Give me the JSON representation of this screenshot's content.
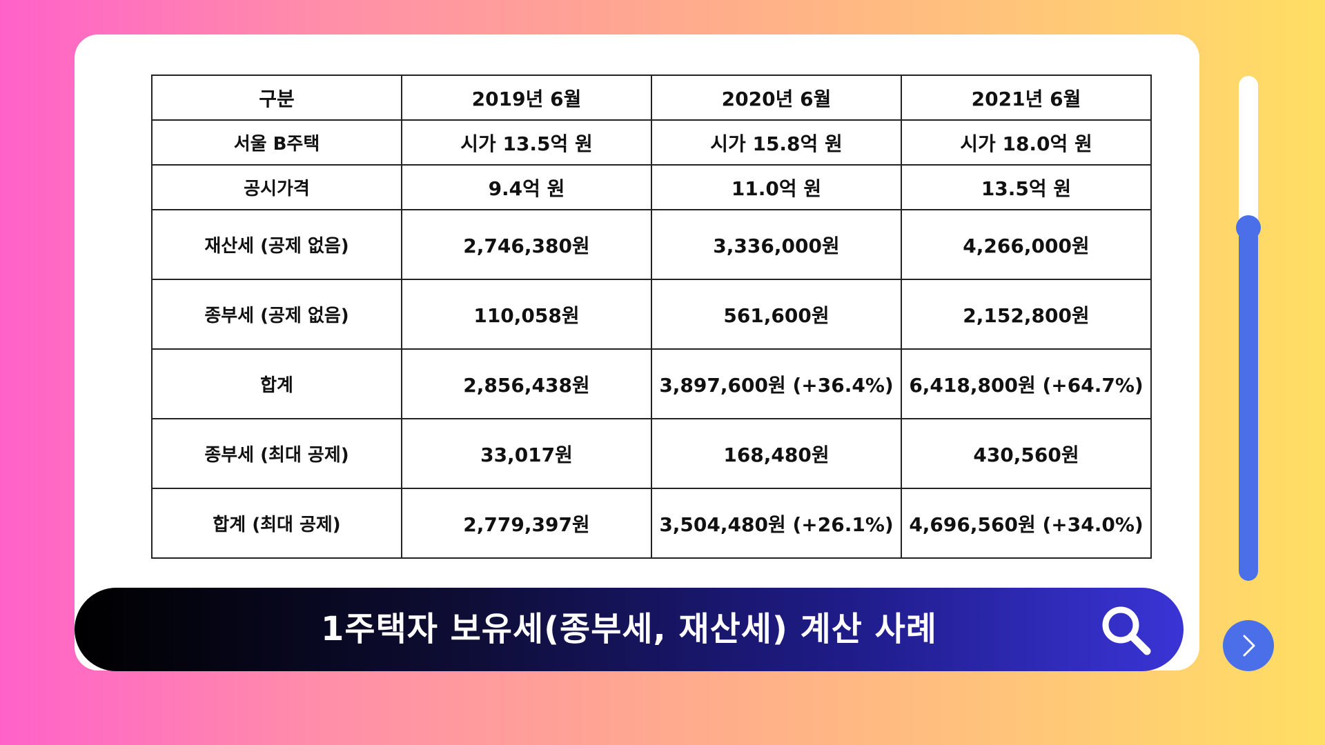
{
  "table": {
    "headers": [
      "구분",
      "2019년 6월",
      "2020년 6월",
      "2021년 6월"
    ],
    "rows": [
      {
        "label": "서울 B주택",
        "values": [
          "시가 13.5억 원",
          "시가 15.8억 원",
          "시가 18.0억 원"
        ]
      },
      {
        "label": "공시가격",
        "values": [
          "9.4억 원",
          "11.0억 원",
          "13.5억 원"
        ]
      },
      {
        "label": "재산세 (공제 없음)",
        "values": [
          "2,746,380원",
          "3,336,000원",
          "4,266,000원"
        ]
      },
      {
        "label": "종부세 (공제 없음)",
        "values": [
          "110,058원",
          "561,600원",
          "2,152,800원"
        ]
      },
      {
        "label": "합계",
        "values": [
          "2,856,438원",
          "3,897,600원 (+36.4%)",
          "6,418,800원 (+64.7%)"
        ]
      },
      {
        "label": "종부세 (최대 공제)",
        "values": [
          "33,017원",
          "168,480원",
          "430,560원"
        ]
      },
      {
        "label": "합계 (최대 공제)",
        "values": [
          "2,779,397원",
          "3,504,480원 (+26.1%)",
          "4,696,560원 (+34.0%)"
        ]
      }
    ]
  },
  "title_bar": {
    "title": "1주택자 보유세(종부세, 재산세) 계산 사례",
    "icon": "search-icon"
  },
  "slider": {
    "level": 0.7
  },
  "next_button": {
    "icon": "chevron-right-icon"
  },
  "colors": {
    "accent": "#4a6fe8",
    "title_gradient_end": "#3a34d6"
  }
}
